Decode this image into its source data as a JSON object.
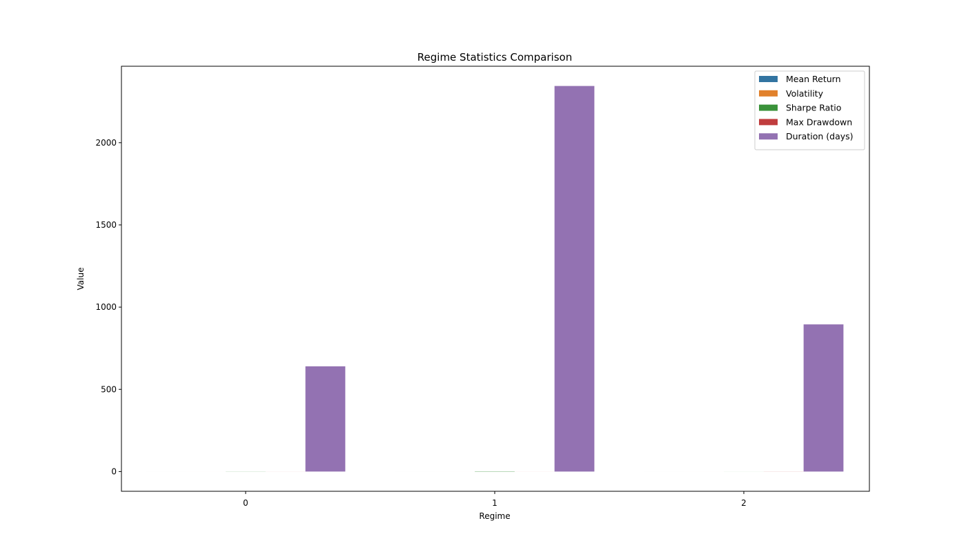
{
  "chart_data": {
    "type": "bar",
    "title": "Regime Statistics Comparison",
    "xlabel": "Regime",
    "ylabel": "Value",
    "categories": [
      "0",
      "1",
      "2"
    ],
    "ylim": [
      -120,
      2465
    ],
    "yticks": [
      0,
      500,
      1000,
      1500,
      2000
    ],
    "legend_position": "top-right",
    "grid": false,
    "series": [
      {
        "name": "Mean Return",
        "color": "#3274a1",
        "values": [
          0.0005,
          0.0008,
          -0.0002
        ]
      },
      {
        "name": "Volatility",
        "color": "#e1812c",
        "values": [
          0.012,
          0.008,
          0.02
        ]
      },
      {
        "name": "Sharpe Ratio",
        "color": "#3a923a",
        "values": [
          0.6,
          1.5,
          -0.2
        ]
      },
      {
        "name": "Max Drawdown",
        "color": "#c03d3e",
        "values": [
          -0.2,
          -0.15,
          -0.45
        ]
      },
      {
        "name": "Duration (days)",
        "color": "#9372b2",
        "values": [
          640,
          2345,
          895
        ]
      }
    ]
  }
}
